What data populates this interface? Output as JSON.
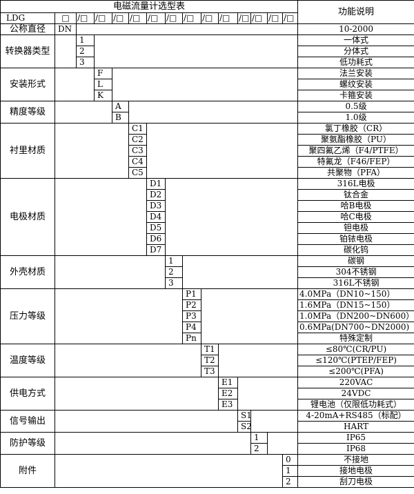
{
  "title": "电磁流量计选型表",
  "function_header": "功能说明",
  "model_row": {
    "prefix": "LDG",
    "first_box": "□",
    "slot": "/□",
    "slot_count": 13
  },
  "nominal_row": {
    "label": "公称直径",
    "code": "DN",
    "function": "10-2000"
  },
  "groups": [
    {
      "label": "转换器类型",
      "column": 0,
      "options": [
        {
          "code": "1",
          "function": "一体式"
        },
        {
          "code": "2",
          "function": "分体式"
        },
        {
          "code": "3",
          "function": "低功耗式"
        }
      ]
    },
    {
      "label": "安装形式",
      "column": 1,
      "options": [
        {
          "code": "F",
          "function": "法兰安装"
        },
        {
          "code": "L",
          "function": "螺纹安装"
        },
        {
          "code": "K",
          "function": "卡箍安装"
        }
      ]
    },
    {
      "label": "精度等级",
      "column": 2,
      "options": [
        {
          "code": "A",
          "function": "0.5级"
        },
        {
          "code": "B",
          "function": "1.0级"
        }
      ]
    },
    {
      "label": "衬里材质",
      "column": 3,
      "options": [
        {
          "code": "C1",
          "function": "氯丁橡胶（CR）"
        },
        {
          "code": "C2",
          "function": "聚氨酯橡胶（PU）"
        },
        {
          "code": "C3",
          "function": "聚四氟乙烯（F4/PTFE）"
        },
        {
          "code": "C4",
          "function": "特氟龙（F46/FEP）"
        },
        {
          "code": "C5",
          "function": "共聚物（PFA）"
        }
      ]
    },
    {
      "label": "电极材质",
      "column": 4,
      "options": [
        {
          "code": "D1",
          "function": "316L电极"
        },
        {
          "code": "D2",
          "function": "钛合金"
        },
        {
          "code": "D3",
          "function": "哈B电极"
        },
        {
          "code": "D4",
          "function": "哈C电极"
        },
        {
          "code": "D5",
          "function": "钽电极"
        },
        {
          "code": "D6",
          "function": "铂铱电极"
        },
        {
          "code": "D7",
          "function": "碳化钨"
        }
      ]
    },
    {
      "label": "外壳材质",
      "column": 5,
      "options": [
        {
          "code": "1",
          "function": "碳钢"
        },
        {
          "code": "2",
          "function": "304不锈钢"
        },
        {
          "code": "3",
          "function": "316L不锈钢"
        }
      ]
    },
    {
      "label": "压力等级",
      "column": 6,
      "options": [
        {
          "code": "P1",
          "function": "4.0MPa（DN10~150）",
          "align": "left"
        },
        {
          "code": "P2",
          "function": "1.6MPa（DN15~150）",
          "align": "left"
        },
        {
          "code": "P3",
          "function": "1.0MPa（DN200~DN600）",
          "align": "left"
        },
        {
          "code": "P4",
          "function": "0.6MPa(DN700~DN2000)",
          "align": "left"
        },
        {
          "code": "Pn",
          "function": "特殊定制"
        }
      ]
    },
    {
      "label": "温度等级",
      "column": 7,
      "options": [
        {
          "code": "T1",
          "function": "≤80℃(CR/PU)"
        },
        {
          "code": "T2",
          "function": "≤120℃(PTEP/FEP)"
        },
        {
          "code": "T3",
          "function": "≤200℃(PFA)"
        }
      ]
    },
    {
      "label": "供电方式",
      "column": 8,
      "options": [
        {
          "code": "E1",
          "function": "220VAC"
        },
        {
          "code": "E2",
          "function": "24VDC"
        },
        {
          "code": "E3",
          "function": "锂电池（仅限低功耗式）"
        }
      ]
    },
    {
      "label": "信号输出",
      "column": 9,
      "options": [
        {
          "code": "S1",
          "function": "4-20mA+RS485（标配）"
        },
        {
          "code": "S2",
          "function": "HART"
        }
      ]
    },
    {
      "label": "防护等级",
      "column": 10,
      "options": [
        {
          "code": "1",
          "function": "IP65"
        },
        {
          "code": "2",
          "function": "IP68"
        }
      ]
    },
    {
      "label": "附件",
      "column": 12,
      "options": [
        {
          "code": "0",
          "function": "不接地"
        },
        {
          "code": "1",
          "function": "接地电极"
        },
        {
          "code": "2",
          "function": "刮刀电极"
        }
      ]
    }
  ]
}
